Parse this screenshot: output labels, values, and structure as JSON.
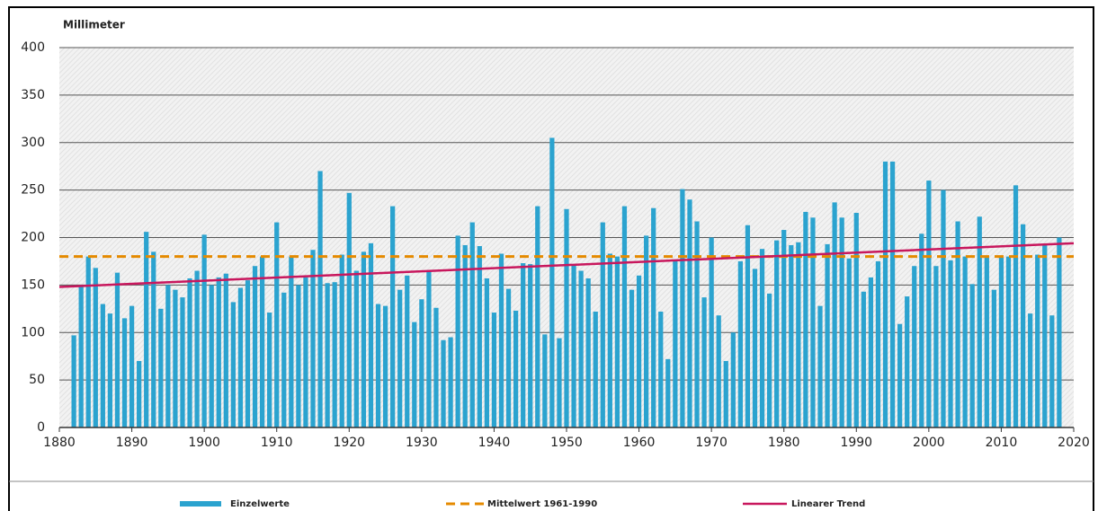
{
  "chart_data": {
    "type": "bar",
    "y_label": "Millimeter",
    "x": [
      1882,
      1883,
      1884,
      1885,
      1886,
      1887,
      1888,
      1889,
      1890,
      1891,
      1892,
      1893,
      1894,
      1895,
      1896,
      1897,
      1898,
      1899,
      1900,
      1901,
      1902,
      1903,
      1904,
      1905,
      1906,
      1907,
      1908,
      1909,
      1910,
      1911,
      1912,
      1913,
      1914,
      1915,
      1916,
      1917,
      1918,
      1919,
      1920,
      1921,
      1922,
      1923,
      1924,
      1925,
      1926,
      1927,
      1928,
      1929,
      1930,
      1931,
      1932,
      1933,
      1934,
      1935,
      1936,
      1937,
      1938,
      1939,
      1940,
      1941,
      1942,
      1943,
      1944,
      1945,
      1946,
      1947,
      1948,
      1949,
      1950,
      1951,
      1952,
      1953,
      1954,
      1955,
      1956,
      1957,
      1958,
      1959,
      1960,
      1961,
      1962,
      1963,
      1964,
      1965,
      1966,
      1967,
      1968,
      1969,
      1970,
      1971,
      1972,
      1973,
      1974,
      1975,
      1976,
      1977,
      1978,
      1979,
      1980,
      1981,
      1982,
      1983,
      1984,
      1985,
      1986,
      1987,
      1988,
      1989,
      1990,
      1991,
      1992,
      1993,
      1994,
      1995,
      1996,
      1997,
      1998,
      1999,
      2000,
      2001,
      2002,
      2003,
      2004,
      2005,
      2006,
      2007,
      2008,
      2009,
      2010,
      2011,
      2012,
      2013,
      2014,
      2015,
      2016,
      2017,
      2018
    ],
    "series": [
      {
        "name": "Einzelwerte",
        "color": "#2ba3cf",
        "values": [
          97,
          150,
          180,
          168,
          130,
          120,
          163,
          115,
          128,
          70,
          206,
          185,
          125,
          150,
          145,
          137,
          157,
          165,
          203,
          150,
          158,
          162,
          132,
          147,
          155,
          170,
          180,
          121,
          216,
          142,
          180,
          150,
          158,
          187,
          270,
          152,
          153,
          182,
          247,
          165,
          185,
          194,
          130,
          128,
          233,
          145,
          160,
          111,
          135,
          165,
          126,
          92,
          95,
          202,
          192,
          216,
          191,
          157,
          121,
          183,
          146,
          123,
          173,
          172,
          233,
          98,
          305,
          94,
          230,
          172,
          165,
          157,
          122,
          216,
          183,
          180,
          233,
          145,
          160,
          202,
          231,
          122,
          72,
          175,
          251,
          240,
          217,
          137,
          200,
          118,
          70,
          100,
          175,
          213,
          167,
          188,
          141,
          197,
          208,
          192,
          195,
          227,
          221,
          128,
          193,
          237,
          221,
          178,
          226,
          143,
          158,
          175,
          280,
          280,
          109,
          138,
          170,
          204,
          260,
          170,
          250,
          176,
          217,
          180,
          151,
          222,
          180,
          145,
          180,
          180,
          255,
          214,
          120,
          182,
          192,
          118,
          200
        ]
      }
    ],
    "mean_line": {
      "name": "Mittelwert 1961-1990",
      "color": "#e58a00",
      "value": 180
    },
    "trend_line": {
      "name": "Linearer Trend",
      "color": "#c8175d",
      "x": [
        1880,
        2020
      ],
      "values": [
        148,
        194
      ]
    },
    "xlim": [
      1880,
      2020
    ],
    "ylim": [
      0,
      400
    ],
    "xticks": [
      1880,
      1890,
      1900,
      1910,
      1920,
      1930,
      1940,
      1950,
      1960,
      1970,
      1980,
      1990,
      2000,
      2010,
      2020
    ],
    "yticks": [
      0,
      50,
      100,
      150,
      200,
      250,
      300,
      350,
      400
    ],
    "grid": true,
    "legend": "bottom"
  }
}
